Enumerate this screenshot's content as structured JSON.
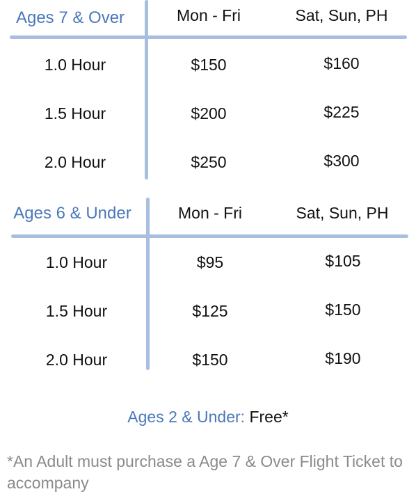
{
  "tables": [
    {
      "title": "Ages 7 & Over",
      "columns": [
        "Mon - Fri",
        "Sat, Sun, PH"
      ],
      "rows": [
        {
          "label": "1.0 Hour",
          "weekday": "$150",
          "weekend": "$160"
        },
        {
          "label": "1.5 Hour",
          "weekday": "$200",
          "weekend": "$225"
        },
        {
          "label": "2.0 Hour",
          "weekday": "$250",
          "weekend": "$300"
        }
      ]
    },
    {
      "title": "Ages 6 & Under",
      "columns": [
        "Mon - Fri",
        "Sat, Sun, PH"
      ],
      "rows": [
        {
          "label": "1.0 Hour",
          "weekday": "$95",
          "weekend": "$105"
        },
        {
          "label": "1.5 Hour",
          "weekday": "$125",
          "weekend": "$150"
        },
        {
          "label": "2.0 Hour",
          "weekday": "$150",
          "weekend": "$190"
        }
      ]
    }
  ],
  "free": {
    "label": "Ages 2 & Under:",
    "value": "Free*"
  },
  "note": "*An Adult must purchase a Age 7 & Over Flight Ticket to accompany",
  "colors": {
    "accent": "#4b78b8",
    "divider": "#a7bedf",
    "text": "#111111",
    "note": "#8a8a8a"
  }
}
